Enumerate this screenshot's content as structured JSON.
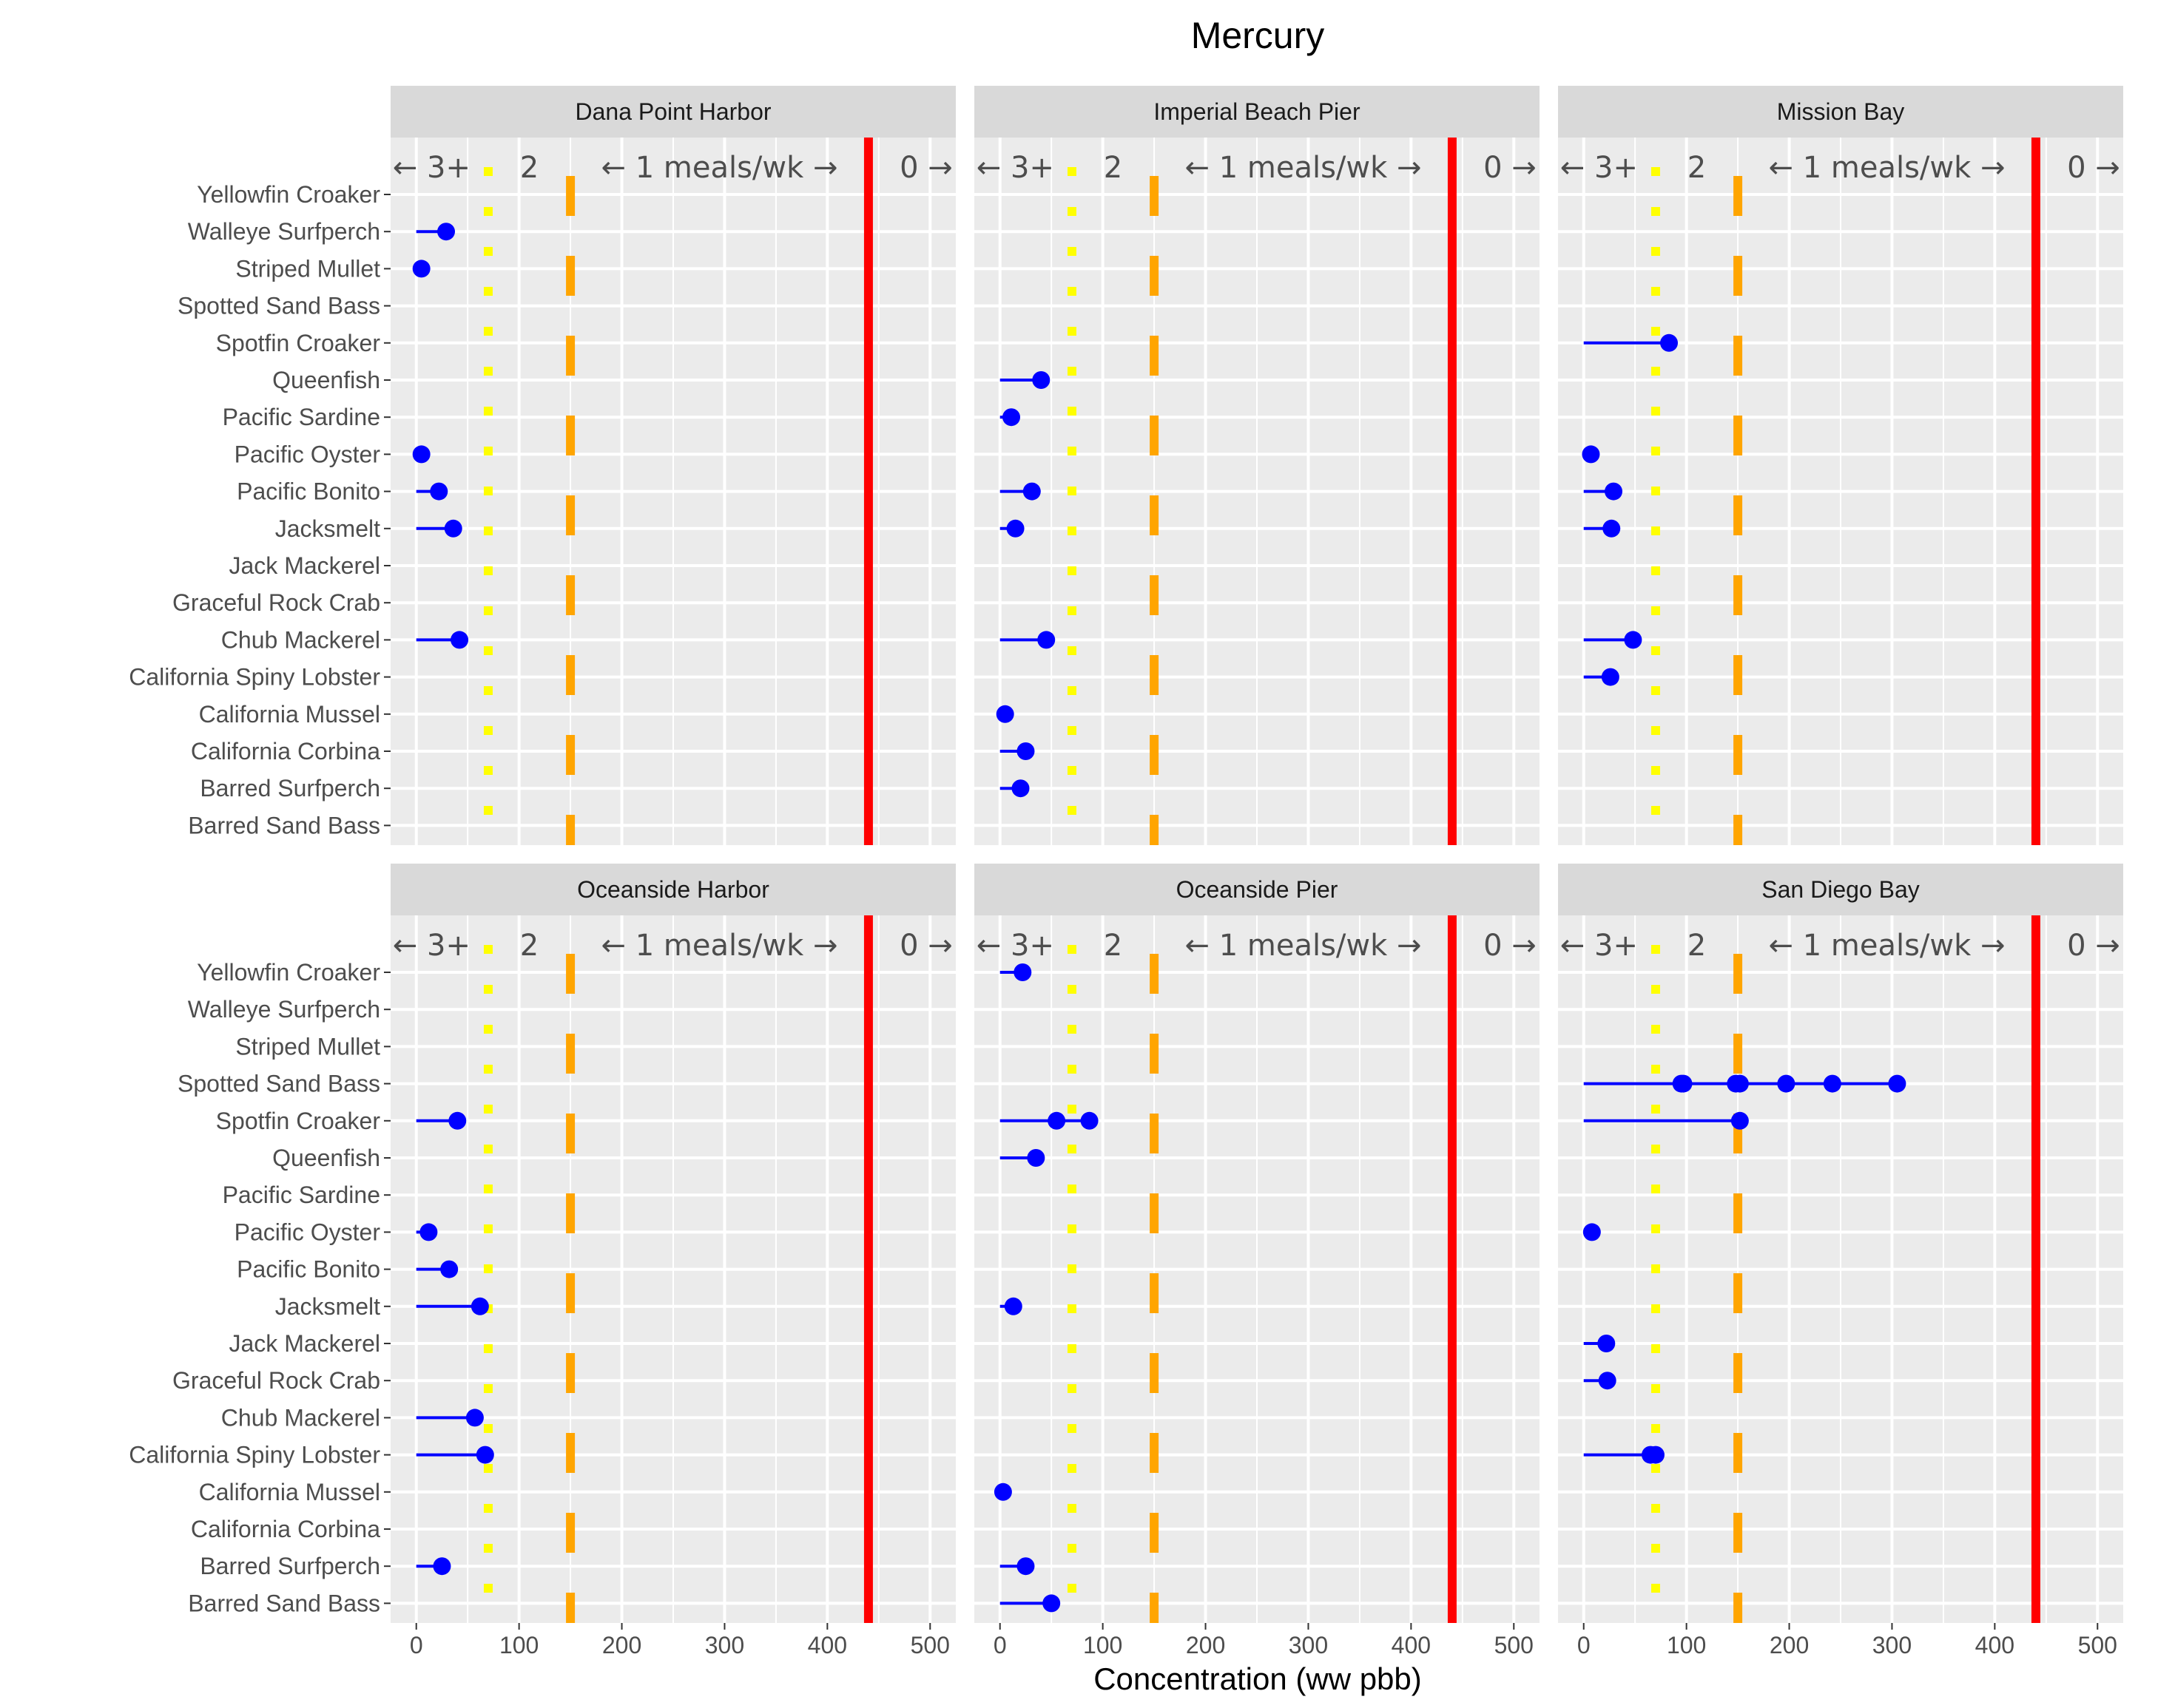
{
  "chart_data": {
    "type": "scatter",
    "title": "Mercury",
    "xlabel": "Concentration (ww pbb)",
    "ylabel": "",
    "xlim": [
      -25,
      525
    ],
    "x_ticks": [
      0,
      100,
      200,
      300,
      400,
      500
    ],
    "categories": [
      "Yellowfin Croaker",
      "Walleye Surfperch",
      "Striped Mullet",
      "Spotted Sand Bass",
      "Spotfin Croaker",
      "Queenfish",
      "Pacific Sardine",
      "Pacific Oyster",
      "Pacific Bonito",
      "Jacksmelt",
      "Jack Mackerel",
      "Graceful Rock Crab",
      "Chub Mackerel",
      "California Spiny Lobster",
      "California Mussel",
      "California Corbina",
      "Barred Surfperch",
      "Barred Sand Bass"
    ],
    "zone_labels": [
      "← 3+",
      "2",
      "← 1 meals/wk →",
      "0 →"
    ],
    "thresholds": [
      {
        "value": 70,
        "style": "dotted",
        "color": "#ffff00"
      },
      {
        "value": 150,
        "style": "dashed",
        "color": "#ffa500"
      },
      {
        "value": 440,
        "style": "solid",
        "color": "#ff0000"
      }
    ],
    "colors": {
      "point": "#0000ff",
      "panel_bg": "#ebebeb",
      "strip_bg": "#d9d9d9",
      "grid": "#ffffff"
    },
    "panels": [
      {
        "name": "Dana Point Harbor",
        "points": [
          {
            "species": "Walleye Surfperch",
            "values": [
              29
            ]
          },
          {
            "species": "Striped Mullet",
            "values": [
              5
            ]
          },
          {
            "species": "Pacific Oyster",
            "values": [
              5
            ]
          },
          {
            "species": "Pacific Bonito",
            "values": [
              22
            ]
          },
          {
            "species": "Jacksmelt",
            "values": [
              36
            ]
          },
          {
            "species": "Chub Mackerel",
            "values": [
              42
            ]
          }
        ]
      },
      {
        "name": "Imperial Beach Pier",
        "points": [
          {
            "species": "Queenfish",
            "values": [
              40
            ]
          },
          {
            "species": "Pacific Sardine",
            "values": [
              11
            ]
          },
          {
            "species": "Pacific Bonito",
            "values": [
              31
            ]
          },
          {
            "species": "Jacksmelt",
            "values": [
              15
            ]
          },
          {
            "species": "Chub Mackerel",
            "values": [
              45
            ]
          },
          {
            "species": "California Mussel",
            "values": [
              5
            ]
          },
          {
            "species": "California Corbina",
            "values": [
              25
            ]
          },
          {
            "species": "Barred Surfperch",
            "values": [
              20
            ]
          }
        ]
      },
      {
        "name": "Mission Bay",
        "points": [
          {
            "species": "Spotfin Croaker",
            "values": [
              83
            ]
          },
          {
            "species": "Pacific Oyster",
            "values": [
              7
            ]
          },
          {
            "species": "Pacific Bonito",
            "values": [
              29
            ]
          },
          {
            "species": "Jacksmelt",
            "values": [
              27
            ]
          },
          {
            "species": "Chub Mackerel",
            "values": [
              48
            ]
          },
          {
            "species": "California Spiny Lobster",
            "values": [
              26
            ]
          }
        ]
      },
      {
        "name": "Oceanside Harbor",
        "points": [
          {
            "species": "Spotfin Croaker",
            "values": [
              40
            ]
          },
          {
            "species": "Pacific Oyster",
            "values": [
              12
            ]
          },
          {
            "species": "Pacific Bonito",
            "values": [
              32
            ]
          },
          {
            "species": "Jacksmelt",
            "values": [
              62
            ]
          },
          {
            "species": "Chub Mackerel",
            "values": [
              57
            ]
          },
          {
            "species": "California Spiny Lobster",
            "values": [
              67
            ]
          },
          {
            "species": "Barred Surfperch",
            "values": [
              25
            ]
          }
        ]
      },
      {
        "name": "Oceanside Pier",
        "points": [
          {
            "species": "Yellowfin Croaker",
            "values": [
              22
            ]
          },
          {
            "species": "Spotfin Croaker",
            "values": [
              55,
              87
            ]
          },
          {
            "species": "Queenfish",
            "values": [
              35
            ]
          },
          {
            "species": "Jacksmelt",
            "values": [
              13
            ]
          },
          {
            "species": "California Mussel",
            "values": [
              3
            ]
          },
          {
            "species": "Barred Surfperch",
            "values": [
              25
            ]
          },
          {
            "species": "Barred Sand Bass",
            "values": [
              50
            ]
          }
        ]
      },
      {
        "name": "San Diego Bay",
        "points": [
          {
            "species": "Spotted Sand Bass",
            "values": [
              95,
              97,
              148,
              152,
              197,
              242,
              305
            ]
          },
          {
            "species": "Spotfin Croaker",
            "values": [
              152
            ]
          },
          {
            "species": "Pacific Oyster",
            "values": [
              8
            ]
          },
          {
            "species": "Jack Mackerel",
            "values": [
              22
            ]
          },
          {
            "species": "Graceful Rock Crab",
            "values": [
              23
            ]
          },
          {
            "species": "California Spiny Lobster",
            "values": [
              65,
              70
            ]
          }
        ]
      }
    ]
  }
}
